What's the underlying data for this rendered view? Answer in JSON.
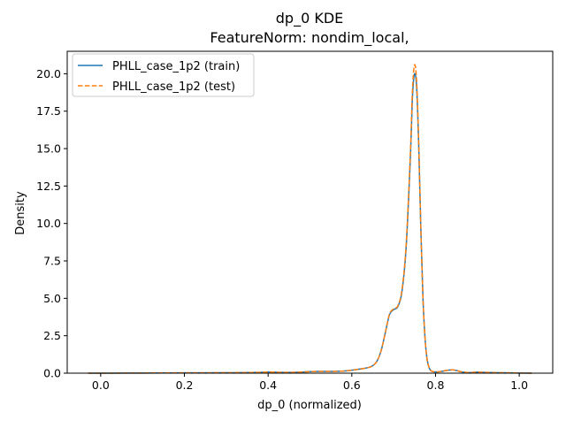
{
  "chart_data": {
    "type": "line",
    "title": "dp_0 KDE",
    "subtitle": "FeatureNorm: nondim_local,",
    "xlabel": "dp_0 (normalized)",
    "ylabel": "Density",
    "xlim": [
      -0.08,
      1.08
    ],
    "ylim": [
      0,
      21.5
    ],
    "xticks": [
      0.0,
      0.2,
      0.4,
      0.6,
      0.8,
      1.0
    ],
    "xtick_labels": [
      "0.0",
      "0.2",
      "0.4",
      "0.6",
      "0.8",
      "1.0"
    ],
    "yticks": [
      0.0,
      2.5,
      5.0,
      7.5,
      10.0,
      12.5,
      15.0,
      17.5,
      20.0
    ],
    "ytick_labels": [
      "0.0",
      "2.5",
      "5.0",
      "7.5",
      "10.0",
      "12.5",
      "15.0",
      "17.5",
      "20.0"
    ],
    "grid": false,
    "legend_position": "top-left",
    "series": [
      {
        "name": "PHLL_case_1p2 (train)",
        "color": "#1f77b4",
        "style": "solid",
        "x": [
          -0.03,
          0.0,
          0.1,
          0.2,
          0.3,
          0.38,
          0.4,
          0.42,
          0.45,
          0.5,
          0.52,
          0.55,
          0.58,
          0.6,
          0.62,
          0.64,
          0.65,
          0.66,
          0.67,
          0.68,
          0.69,
          0.7,
          0.71,
          0.72,
          0.73,
          0.74,
          0.745,
          0.75,
          0.755,
          0.76,
          0.765,
          0.77,
          0.775,
          0.78,
          0.785,
          0.79,
          0.8,
          0.81,
          0.82,
          0.83,
          0.84,
          0.85,
          0.86,
          0.87,
          0.88,
          0.9,
          0.92,
          0.95,
          1.0,
          1.03
        ],
        "y": [
          0.0,
          0.0,
          0.01,
          0.02,
          0.03,
          0.05,
          0.08,
          0.06,
          0.05,
          0.1,
          0.12,
          0.12,
          0.14,
          0.2,
          0.28,
          0.38,
          0.5,
          0.8,
          1.5,
          2.7,
          3.9,
          4.25,
          4.45,
          5.5,
          8.5,
          14.5,
          18.5,
          20.0,
          19.0,
          15.0,
          9.5,
          5.0,
          2.3,
          0.9,
          0.35,
          0.15,
          0.08,
          0.1,
          0.15,
          0.2,
          0.22,
          0.18,
          0.1,
          0.06,
          0.04,
          0.07,
          0.05,
          0.03,
          0.01,
          0.0
        ]
      },
      {
        "name": "PHLL_case_1p2 (test)",
        "color": "#ff7f0e",
        "style": "dashed",
        "x": [
          -0.03,
          0.0,
          0.1,
          0.2,
          0.3,
          0.38,
          0.4,
          0.42,
          0.45,
          0.5,
          0.52,
          0.55,
          0.58,
          0.6,
          0.62,
          0.64,
          0.65,
          0.66,
          0.67,
          0.68,
          0.69,
          0.7,
          0.71,
          0.72,
          0.73,
          0.74,
          0.745,
          0.75,
          0.755,
          0.76,
          0.765,
          0.77,
          0.775,
          0.78,
          0.785,
          0.79,
          0.8,
          0.81,
          0.82,
          0.83,
          0.84,
          0.85,
          0.86,
          0.87,
          0.88,
          0.9,
          0.92,
          0.95,
          1.0,
          1.03
        ],
        "y": [
          0.0,
          0.0,
          0.01,
          0.02,
          0.03,
          0.05,
          0.08,
          0.06,
          0.05,
          0.1,
          0.12,
          0.12,
          0.14,
          0.2,
          0.28,
          0.38,
          0.5,
          0.8,
          1.5,
          2.7,
          3.95,
          4.3,
          4.5,
          5.6,
          8.7,
          14.8,
          19.0,
          20.6,
          19.4,
          15.2,
          9.6,
          5.0,
          2.3,
          0.9,
          0.35,
          0.15,
          0.08,
          0.1,
          0.15,
          0.2,
          0.22,
          0.18,
          0.1,
          0.06,
          0.04,
          0.07,
          0.05,
          0.03,
          0.01,
          0.0
        ]
      }
    ]
  }
}
